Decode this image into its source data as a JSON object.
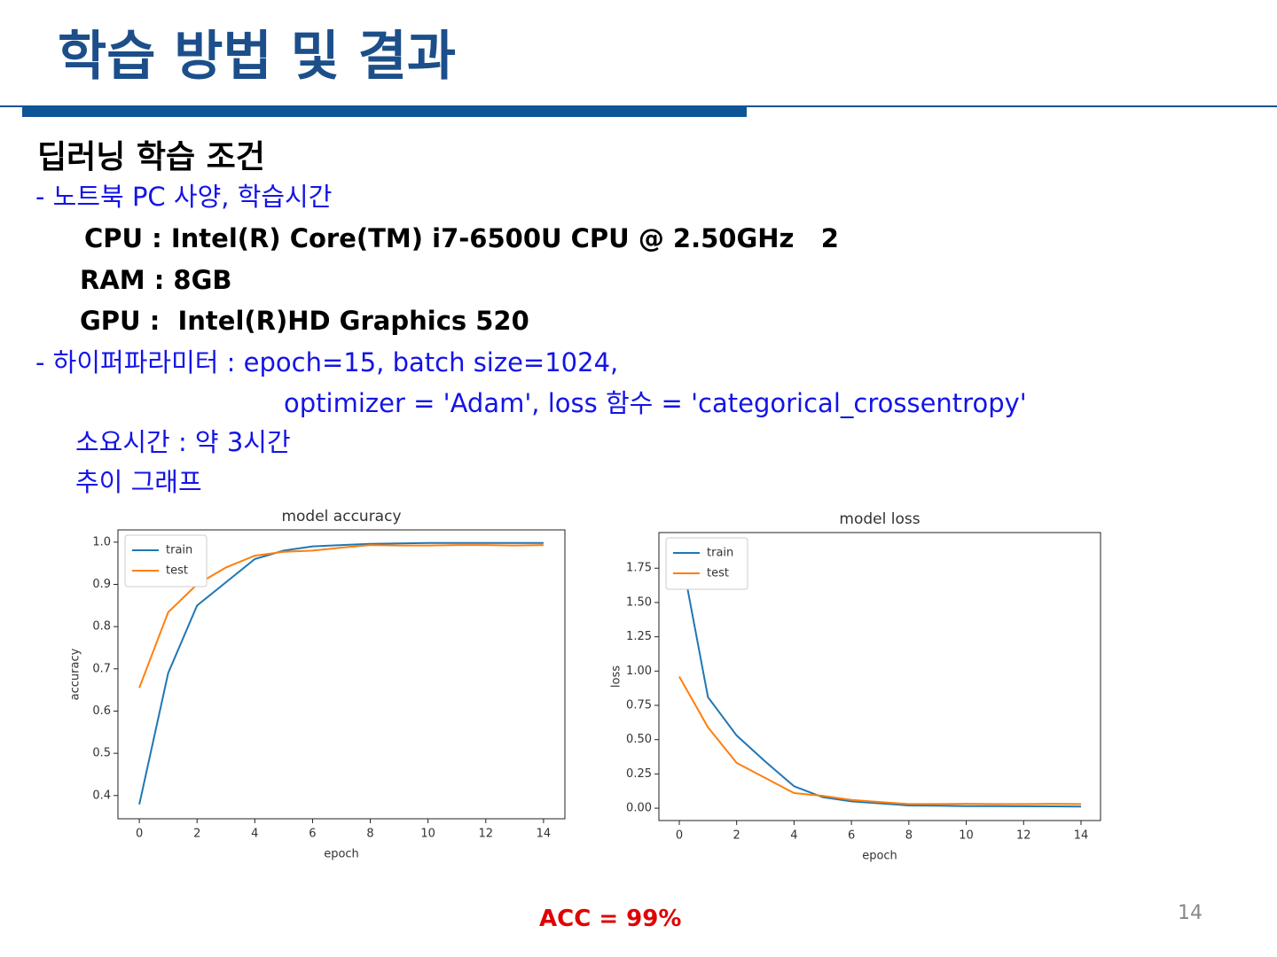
{
  "header": {
    "title": "학습 방법 및 결과"
  },
  "body": {
    "heading": "딥러닝 학습 조건",
    "lines": [
      "- 노트북 PC 사양, 학습시간",
      "CPU : Intel(R) Core(TM) i7-6500U CPU @ 2.50GHz   2",
      "RAM : 8GB",
      "GPU :  Intel(R)HD Graphics 520",
      "- 하이퍼파라미터 : epoch=15, batch size=1024,",
      "optimizer = 'Adam', loss 함수 = 'categorical_crossentropy'",
      "소요시간 : 약 3시간",
      "추이 그래프"
    ]
  },
  "chart_data": [
    {
      "type": "line",
      "title": "model accuracy",
      "x_label": "epoch",
      "y_label": "accuracy",
      "x": [
        0,
        1,
        2,
        3,
        4,
        5,
        6,
        7,
        8,
        9,
        10,
        11,
        12,
        13,
        14
      ],
      "series": [
        {
          "name": "train",
          "color": "#1f77b4",
          "values": [
            0.379,
            0.69,
            0.85,
            0.905,
            0.96,
            0.98,
            0.99,
            0.993,
            0.996,
            0.997,
            0.998,
            0.998,
            0.998,
            0.998,
            0.998
          ]
        },
        {
          "name": "test",
          "color": "#ff7f0e",
          "values": [
            0.655,
            0.834,
            0.9,
            0.94,
            0.968,
            0.977,
            0.98,
            0.987,
            0.993,
            0.992,
            0.992,
            0.993,
            0.993,
            0.992,
            0.993
          ]
        }
      ],
      "xlim": [
        -0.74,
        14.74
      ],
      "ylim": [
        0.345,
        1.029
      ],
      "xticks": [
        0,
        2,
        4,
        6,
        8,
        10,
        12,
        14
      ],
      "yticks": [
        0.4,
        0.5,
        0.6,
        0.7,
        0.8,
        0.9,
        {
          "value": 1,
          "label": "1.0"
        }
      ],
      "legend": "upper left"
    },
    {
      "type": "line",
      "title": "model loss",
      "x_label": "epoch",
      "y_label": "loss",
      "x": [
        0,
        1,
        2,
        3,
        4,
        5,
        6,
        7,
        8,
        9,
        10,
        11,
        12,
        13,
        14
      ],
      "series": [
        {
          "name": "train",
          "color": "#1f77b4",
          "values": [
            1.92,
            0.81,
            0.53,
            0.34,
            0.16,
            0.08,
            0.05,
            0.035,
            0.02,
            0.018,
            0.015,
            0.015,
            0.014,
            0.013,
            0.012
          ]
        },
        {
          "name": "test",
          "color": "#ff7f0e",
          "values": [
            0.96,
            0.59,
            0.33,
            0.22,
            0.11,
            0.09,
            0.06,
            0.045,
            0.03,
            0.03,
            0.032,
            0.03,
            0.03,
            0.032,
            0.03
          ]
        }
      ],
      "xlim": [
        -0.71,
        14.68
      ],
      "ylim": [
        -0.09,
        2.01
      ],
      "xticks": [
        0,
        2,
        4,
        6,
        8,
        10,
        12,
        14
      ],
      "yticks": [
        {
          "value": 0,
          "label": "0.00"
        },
        {
          "value": 0.25,
          "label": "0.25"
        },
        {
          "value": 0.5,
          "label": "0.50"
        },
        {
          "value": 0.75,
          "label": "0.75"
        },
        {
          "value": 1,
          "label": "1.00"
        },
        {
          "value": 1.25,
          "label": "1.25"
        },
        {
          "value": 1.5,
          "label": "1.50"
        },
        {
          "value": 1.75,
          "label": "1.75"
        }
      ],
      "legend": "upper left"
    }
  ],
  "footer": {
    "result": "ACC = 99%",
    "page_number": 14
  }
}
